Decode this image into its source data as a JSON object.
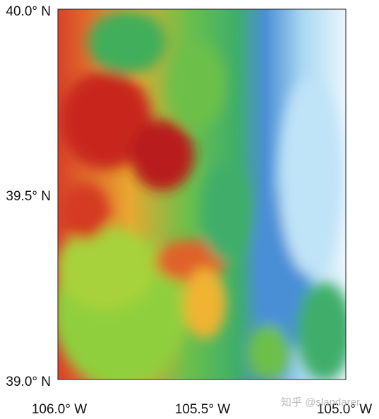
{
  "map": {
    "lat_labels": [
      "40.0° N",
      "39.5° N",
      "39.0° N"
    ],
    "lon_labels": [
      "106.0° W",
      "105.5° W",
      "105.0° W"
    ]
  },
  "watermark": "知乎 @slandarer"
}
